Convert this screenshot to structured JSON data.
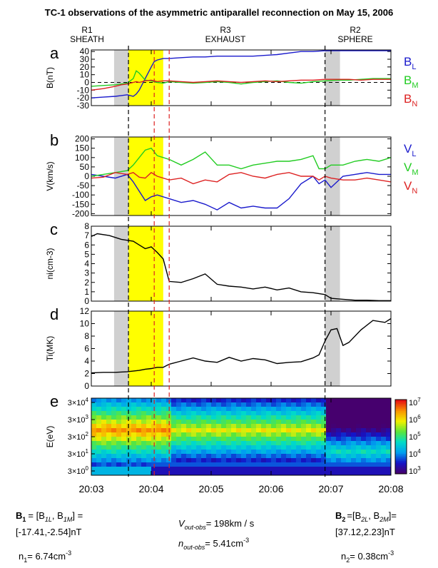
{
  "title": "TC-1 observations of the asymmetric antiparallel reconnection on May 15, 2006",
  "regions": [
    {
      "label": "R1",
      "sub": "1",
      "name": "SHEATH"
    },
    {
      "label": "R3",
      "sub": "3",
      "name": "EXHAUST"
    },
    {
      "label": "R2",
      "sub": "2",
      "name": "SPHERE"
    }
  ],
  "x_ticks": [
    "20:03",
    "20:04",
    "20:05",
    "20:06",
    "20:07",
    "20:08"
  ],
  "chart_data": [
    {
      "id": "a",
      "type": "line",
      "panel_letter": "a",
      "ylabel": "B(nT)",
      "ylim": [
        -30,
        42
      ],
      "yticks": [
        "-30",
        "-20",
        "-10",
        "0",
        "10",
        "20",
        "30",
        "40"
      ],
      "xlim_minutes": [
        0,
        5
      ],
      "zero_dashed": true,
      "x": [
        0,
        0.2,
        0.4,
        0.5,
        0.6,
        0.7,
        0.75,
        0.8,
        0.9,
        1.0,
        1.05,
        1.1,
        1.2,
        1.3,
        1.5,
        1.7,
        1.9,
        2.1,
        2.3,
        2.5,
        2.7,
        2.9,
        3.1,
        3.3,
        3.5,
        3.7,
        3.9,
        4.1,
        4.3,
        4.5,
        4.7,
        4.9,
        5.0
      ],
      "series": [
        {
          "name": "BL",
          "label_main": "B",
          "label_sub": "L",
          "color": "#1a1acc",
          "values": [
            -20,
            -19,
            -18,
            -17,
            -16,
            -18,
            -15,
            -10,
            5,
            20,
            27,
            29,
            31,
            31,
            32,
            33,
            33,
            34,
            34,
            34,
            34,
            35,
            36,
            38,
            40,
            40,
            41,
            41,
            41,
            41,
            41,
            41,
            41
          ]
        },
        {
          "name": "BM",
          "label_main": "B",
          "label_sub": "M",
          "color": "#22cc22",
          "values": [
            -5,
            -4,
            -3,
            -2,
            -1,
            5,
            15,
            12,
            3,
            2,
            1,
            0,
            -1,
            1,
            0,
            -1,
            0,
            1,
            0,
            -2,
            0,
            1,
            2,
            0,
            -1,
            1,
            2,
            3,
            3,
            4,
            5,
            5,
            5
          ]
        },
        {
          "name": "BN",
          "label_main": "B",
          "label_sub": "N",
          "color": "#dd2222",
          "values": [
            -10,
            -8,
            -5,
            -3,
            -2,
            0,
            1,
            0,
            2,
            3,
            2,
            1,
            2,
            2,
            1,
            0,
            1,
            2,
            1,
            0,
            1,
            2,
            1,
            2,
            3,
            3,
            4,
            4,
            4,
            3,
            4,
            4,
            4
          ]
        }
      ]
    },
    {
      "id": "b",
      "type": "line",
      "panel_letter": "b",
      "ylabel": "V(km/s)",
      "ylim": [
        -210,
        210
      ],
      "yticks": [
        "-200",
        "-150",
        "-100",
        "-50",
        "0",
        "50",
        "100",
        "150",
        "200"
      ],
      "xlim_minutes": [
        0,
        5
      ],
      "x": [
        0,
        0.2,
        0.4,
        0.6,
        0.7,
        0.8,
        0.9,
        1.0,
        1.1,
        1.3,
        1.5,
        1.7,
        1.9,
        2.1,
        2.3,
        2.5,
        2.7,
        2.9,
        3.1,
        3.3,
        3.5,
        3.7,
        3.8,
        3.9,
        4.0,
        4.2,
        4.4,
        4.6,
        4.8,
        5.0
      ],
      "series": [
        {
          "name": "VL",
          "label_main": "V",
          "label_sub": "L",
          "color": "#1a1acc",
          "values": [
            10,
            0,
            -10,
            10,
            -30,
            -80,
            -130,
            -110,
            -100,
            -120,
            -140,
            -130,
            -150,
            -180,
            -140,
            -170,
            -160,
            -170,
            -170,
            -120,
            -40,
            0,
            -40,
            -20,
            -60,
            0,
            10,
            20,
            10,
            10
          ]
        },
        {
          "name": "VM",
          "label_main": "V",
          "label_sub": "M",
          "color": "#22cc22",
          "values": [
            0,
            10,
            20,
            30,
            60,
            100,
            140,
            150,
            110,
            90,
            60,
            90,
            130,
            60,
            60,
            40,
            60,
            70,
            80,
            80,
            90,
            110,
            40,
            40,
            60,
            60,
            80,
            90,
            80,
            100
          ]
        },
        {
          "name": "VN",
          "label_main": "V",
          "label_sub": "N",
          "color": "#dd2222",
          "values": [
            -10,
            -5,
            20,
            10,
            20,
            -5,
            -10,
            20,
            0,
            -20,
            -10,
            -40,
            -20,
            -30,
            10,
            20,
            0,
            -10,
            10,
            20,
            0,
            0,
            -20,
            0,
            -10,
            -20,
            -20,
            -10,
            -20,
            -30
          ]
        }
      ]
    },
    {
      "id": "c",
      "type": "line",
      "panel_letter": "c",
      "ylabel": "ni(cm-3)",
      "ylim": [
        0,
        8
      ],
      "yticks": [
        "0",
        "1",
        "2",
        "3",
        "4",
        "5",
        "6",
        "7",
        "8"
      ],
      "xlim_minutes": [
        0,
        5
      ],
      "x": [
        0,
        0.1,
        0.3,
        0.5,
        0.7,
        0.8,
        0.9,
        1.0,
        1.1,
        1.2,
        1.3,
        1.5,
        1.7,
        1.9,
        2.1,
        2.3,
        2.5,
        2.7,
        2.9,
        3.1,
        3.3,
        3.5,
        3.7,
        3.9,
        4.0,
        4.2,
        4.4,
        4.6,
        4.8,
        5.0
      ],
      "series": [
        {
          "name": "ni",
          "color": "#000000",
          "values": [
            6.9,
            7.2,
            7.0,
            6.6,
            6.4,
            6.0,
            5.6,
            5.8,
            5.2,
            4.5,
            2.1,
            2.0,
            2.4,
            2.9,
            1.8,
            1.6,
            1.5,
            1.3,
            1.5,
            1.2,
            1.4,
            1.0,
            0.9,
            0.7,
            0.3,
            0.2,
            0.1,
            0.1,
            0.05,
            0.05
          ]
        }
      ]
    },
    {
      "id": "d",
      "type": "line",
      "panel_letter": "d",
      "ylabel": "Ti(MK)",
      "ylim": [
        0,
        12
      ],
      "yticks": [
        "0",
        "2",
        "4",
        "6",
        "8",
        "10",
        "12"
      ],
      "xlim_minutes": [
        0,
        5
      ],
      "x": [
        0,
        0.2,
        0.4,
        0.6,
        0.8,
        0.9,
        1.0,
        1.1,
        1.2,
        1.3,
        1.5,
        1.7,
        1.9,
        2.1,
        2.3,
        2.5,
        2.7,
        2.9,
        3.1,
        3.3,
        3.5,
        3.7,
        3.8,
        3.9,
        4.0,
        4.1,
        4.2,
        4.3,
        4.5,
        4.7,
        4.9,
        5.0
      ],
      "series": [
        {
          "name": "Ti",
          "color": "#000000",
          "values": [
            2.1,
            2.2,
            2.2,
            2.3,
            2.5,
            2.7,
            2.8,
            3.0,
            3.0,
            3.5,
            4.0,
            4.5,
            4.0,
            3.8,
            4.6,
            4.0,
            4.4,
            4.2,
            3.6,
            3.8,
            3.9,
            4.5,
            5.0,
            7.2,
            9.0,
            9.2,
            6.5,
            7.0,
            9.0,
            10.5,
            10.2,
            10.8
          ]
        }
      ]
    },
    {
      "id": "e",
      "type": "heatmap",
      "panel_letter": "e",
      "ylabel": "E(eV)",
      "yticks_main": [
        "3",
        "3",
        "3",
        "3",
        "3"
      ],
      "yticks_exp": [
        "0",
        "1",
        "2",
        "3",
        "4"
      ],
      "colorbar_ticks_exp": [
        "3",
        "4",
        "5",
        "6",
        "7"
      ],
      "xlim_minutes": [
        0,
        5
      ]
    }
  ],
  "markers": {
    "gray_bands": [
      [
        0.38,
        0.62
      ],
      [
        3.9,
        4.15
      ]
    ],
    "yellow_band": [
      0.62,
      1.2
    ],
    "black_dashed": [
      0.62,
      3.9
    ],
    "red_dashed": [
      1.05,
      1.3
    ]
  },
  "footer": {
    "b1_label": "B",
    "b1_sub": "1",
    "b1_eq": "= [B",
    "b1_comp1": "1L",
    "b1_comp2": "1M",
    "b1_value": "[-17.41,-2.54]nT",
    "n1": "n",
    "n1_sub": "1",
    "n1_value": "= 6.74cm",
    "n1_exp": "-3",
    "vout_label": "V",
    "vout_sub": "out-obs",
    "vout_value": "= 198km / s",
    "nout_label": "n",
    "nout_sub": "out-obs",
    "nout_value": "= 5.41cm",
    "nout_exp": "-3",
    "b2_label": "B",
    "b2_sub": "2",
    "b2_eq": "=[B",
    "b2_comp1": "2L",
    "b2_comp2": "2M",
    "b2_value": "[37.12,2.23]nT",
    "n2": "n",
    "n2_sub": "2",
    "n2_value": "= 0.38cm",
    "n2_exp": "-3"
  }
}
